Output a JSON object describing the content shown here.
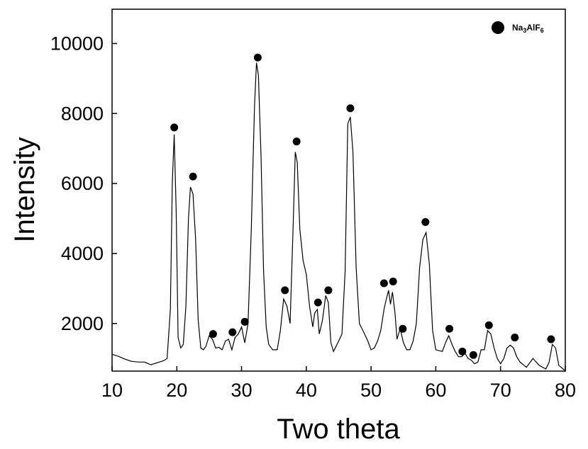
{
  "chart_data": {
    "type": "line",
    "title": "",
    "xlabel": "Two theta",
    "ylabel": "Intensity",
    "xlim": [
      10,
      80
    ],
    "ylim": [
      640,
      10980
    ],
    "x_ticks": [
      10,
      20,
      30,
      40,
      50,
      60,
      70,
      80
    ],
    "y_ticks": [
      2000,
      4000,
      6000,
      8000,
      10000
    ],
    "x_tick_labels": [
      "10",
      "20",
      "30",
      "40",
      "50",
      "60",
      "70",
      "80"
    ],
    "y_tick_labels": [
      "2000",
      "4000",
      "6000",
      "8000",
      "10000"
    ],
    "grid": false,
    "legend_position": "top-right",
    "legend": {
      "text_main": "Na",
      "sub1": "3",
      "text_mid": "AlF",
      "sub2": "6",
      "marker": "filled-circle"
    },
    "series": [
      {
        "name": "",
        "color": "#000000",
        "x": [
          10,
          11,
          12,
          13,
          14,
          15,
          16,
          17,
          18,
          18.5,
          19,
          19.3,
          19.6,
          19.9,
          20.2,
          20.6,
          21,
          21.4,
          21.8,
          22.1,
          22.5,
          22.9,
          23.3,
          23.7,
          24.1,
          24.5,
          25,
          25.5,
          26,
          26.5,
          27,
          27.5,
          28,
          28.5,
          29,
          29.5,
          30,
          30.5,
          31,
          31.5,
          32,
          32.3,
          32.6,
          33,
          33.4,
          33.8,
          34.2,
          34.8,
          35.5,
          36,
          36.5,
          37,
          37.5,
          38,
          38.3,
          38.6,
          39,
          39.5,
          40,
          40.5,
          41,
          41.3,
          41.7,
          42,
          42.5,
          43,
          43.4,
          43.8,
          44.2,
          45,
          45.5,
          46,
          46.4,
          46.8,
          47.2,
          47.7,
          48.2,
          49,
          49.5,
          50,
          50.5,
          51,
          51.5,
          52,
          52.3,
          52.7,
          53,
          53.3,
          53.7,
          54,
          54.5,
          55,
          55.5,
          56,
          56.5,
          57,
          57.5,
          58,
          58.5,
          59,
          59.5,
          60,
          61,
          61.5,
          62,
          62.5,
          63,
          63.5,
          64,
          64.5,
          65,
          65.5,
          66,
          66.5,
          67,
          67.5,
          68,
          68.5,
          69,
          69.5,
          70,
          70.5,
          71,
          71.5,
          72,
          72.5,
          73,
          74,
          75,
          76,
          77,
          77.5,
          78,
          78.5,
          79,
          80
        ],
        "y": [
          1120,
          1060,
          980,
          920,
          900,
          900,
          820,
          880,
          940,
          1000,
          2400,
          6000,
          7400,
          5200,
          1600,
          1300,
          1400,
          2500,
          5000,
          5900,
          5700,
          4400,
          2100,
          1300,
          1250,
          1350,
          1650,
          1550,
          1300,
          1320,
          1250,
          1500,
          1550,
          1250,
          1600,
          1700,
          1900,
          1450,
          2000,
          4700,
          8200,
          9450,
          9100,
          6800,
          3500,
          1900,
          1400,
          1250,
          1250,
          1800,
          2700,
          2500,
          2000,
          5000,
          6900,
          6600,
          4700,
          3800,
          3400,
          2500,
          1900,
          2300,
          2400,
          1700,
          2100,
          2800,
          2600,
          1450,
          1200,
          1500,
          1700,
          3500,
          7700,
          7900,
          6900,
          3600,
          2000,
          1700,
          1500,
          1250,
          1300,
          1500,
          1800,
          2400,
          2650,
          2950,
          2550,
          2900,
          2300,
          1550,
          1850,
          1450,
          1250,
          1250,
          1500,
          2000,
          3600,
          4400,
          4600,
          3700,
          1800,
          1250,
          1200,
          1450,
          1650,
          1400,
          1200,
          1050,
          1050,
          1150,
          1000,
          950,
          850,
          900,
          1250,
          1250,
          1800,
          1700,
          1300,
          1000,
          850,
          1000,
          1300,
          1380,
          1300,
          1050,
          900,
          750,
          1000,
          800,
          700,
          900,
          1400,
          1300,
          800,
          650
        ]
      }
    ],
    "markers": {
      "name": "Na3AlF6",
      "x": [
        19.6,
        22.5,
        25.6,
        28.6,
        30.5,
        32.5,
        36.7,
        38.5,
        41.8,
        43.4,
        46.8,
        52.0,
        53.4,
        54.9,
        58.4,
        62.1,
        64.1,
        65.8,
        68.2,
        72.2,
        77.8
      ],
      "y": [
        7600,
        6200,
        1700,
        1750,
        2050,
        9600,
        2950,
        7200,
        2600,
        2950,
        8150,
        3150,
        3200,
        1850,
        4900,
        1850,
        1200,
        1100,
        1950,
        1600,
        1550
      ]
    }
  }
}
